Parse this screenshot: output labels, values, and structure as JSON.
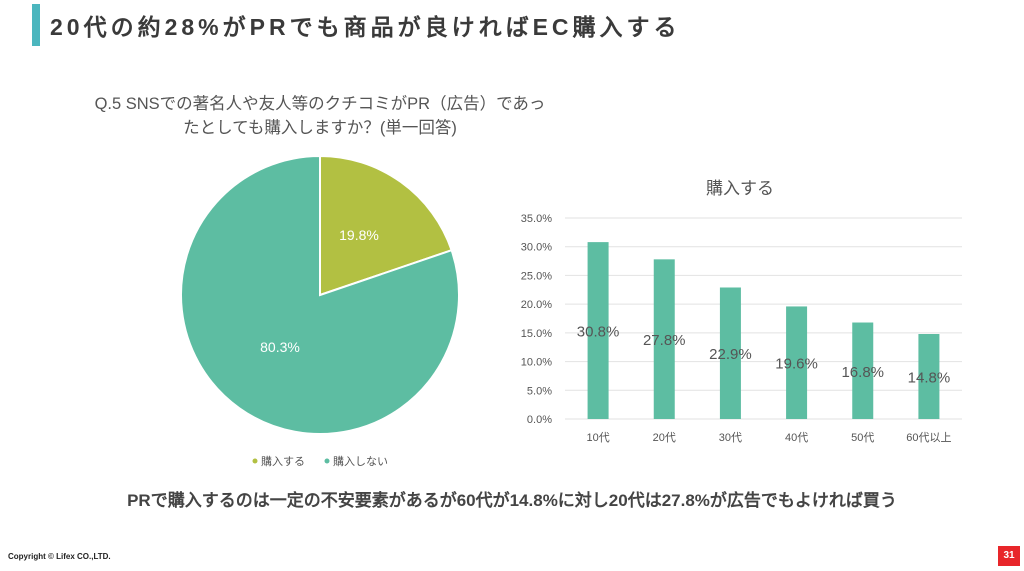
{
  "header": {
    "title": "20代の約28%がPRでも商品が良ければEC購入する",
    "accent_color": "#4bb6be"
  },
  "question": {
    "line1": "Q.5 SNSでの著名人や友人等のクチコミがPR（広告）であっ",
    "line2": "たとしても購入しますか？(単一回答)"
  },
  "chart_data": [
    {
      "type": "pie",
      "title": "",
      "slices": [
        {
          "name": "購入する",
          "value": 19.8,
          "label": "19.8%",
          "color": "#b2c042"
        },
        {
          "name": "購入しない",
          "value": 80.3,
          "label": "80.3%",
          "color": "#5dbda2"
        }
      ],
      "legend_position": "bottom"
    },
    {
      "type": "bar",
      "title": "購入する",
      "categories": [
        "10代",
        "20代",
        "30代",
        "40代",
        "50代",
        "60代以上"
      ],
      "values": [
        30.8,
        27.8,
        22.9,
        19.6,
        16.8,
        14.8
      ],
      "data_labels": [
        "30.8%",
        "27.8%",
        "22.9%",
        "19.6%",
        "16.8%",
        "14.8%"
      ],
      "ylim": [
        0,
        35
      ],
      "yticks": [
        "0.0%",
        "5.0%",
        "10.0%",
        "15.0%",
        "20.0%",
        "25.0%",
        "30.0%",
        "35.0%"
      ],
      "grid": true,
      "color": "#5dbda2"
    }
  ],
  "summary": "PRで購入するのは一定の不安要素があるが60代が14.8%に対し20代は27.8%が広告でもよければ買う",
  "footer": {
    "copyright": "Copyright © Lifex CO.,LTD.",
    "page": "31",
    "page_color": "#e8262a"
  }
}
